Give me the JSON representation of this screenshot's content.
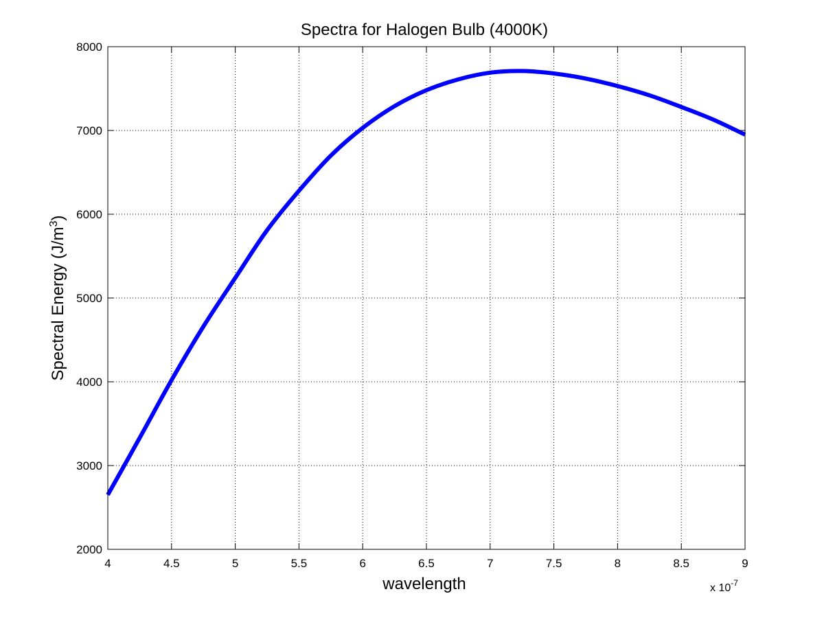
{
  "chart_data": {
    "type": "line",
    "title": "Spectra for Halogen Bulb (4000K)",
    "xlabel": "wavelength",
    "ylabel_main": "Spectral Energy (J/m",
    "ylabel_sup": "3",
    "ylabel_close": ")",
    "x_exponent_prefix": "x 10",
    "x_exponent_power": "-7",
    "x_scale": 1e-07,
    "xlim": [
      4,
      9
    ],
    "ylim": [
      2000,
      8000
    ],
    "xticks": [
      "4",
      "4.5",
      "5",
      "5.5",
      "6",
      "6.5",
      "7",
      "7.5",
      "8",
      "8.5",
      "9"
    ],
    "yticks": [
      "2000",
      "3000",
      "4000",
      "5000",
      "6000",
      "7000",
      "8000"
    ],
    "grid": true,
    "line_color": "#0000ff",
    "series": [
      {
        "x": [
          4.0,
          4.25,
          4.5,
          4.75,
          5.0,
          5.25,
          5.5,
          5.75,
          6.0,
          6.25,
          6.5,
          6.75,
          7.0,
          7.25,
          7.5,
          7.75,
          8.0,
          8.25,
          8.5,
          8.75,
          9.0
        ],
        "y": [
          2650,
          3330,
          4020,
          4660,
          5240,
          5810,
          6280,
          6700,
          7030,
          7290,
          7480,
          7610,
          7690,
          7710,
          7680,
          7620,
          7530,
          7420,
          7280,
          7130,
          6950
        ]
      }
    ]
  }
}
